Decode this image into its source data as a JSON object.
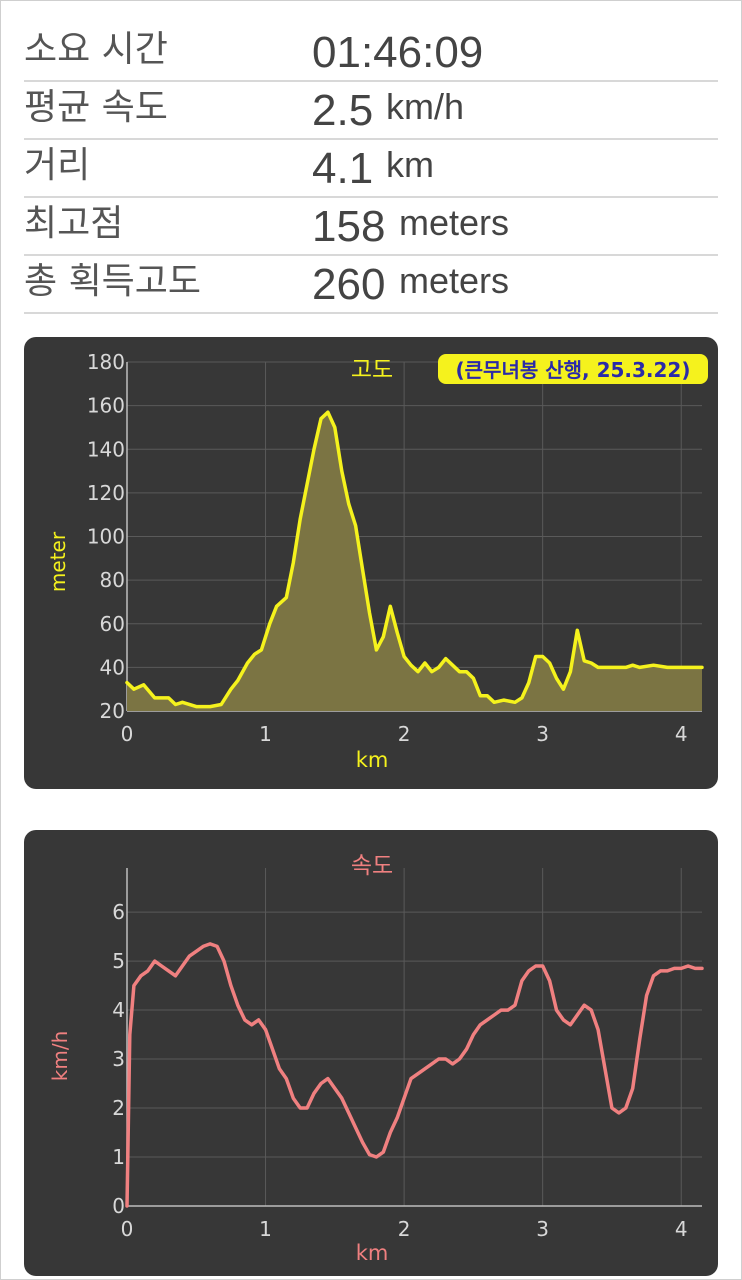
{
  "stats": [
    {
      "label": "소요 시간",
      "value": "01:46:09",
      "unit": ""
    },
    {
      "label": "평균 속도",
      "value": "2.5",
      "unit": "km/h"
    },
    {
      "label": "거리",
      "value": "4.1",
      "unit": "km"
    },
    {
      "label": "최고점",
      "value": "158",
      "unit": "meters"
    },
    {
      "label": "총 획득고도",
      "value": "260",
      "unit": "meters"
    }
  ],
  "colors": {
    "card_bg": "#373737",
    "grid": "#5a5a5a",
    "axis_text": "#d8d8d8",
    "elevation_line": "#f5f21d",
    "elevation_fill": "#7b7443",
    "speed_line": "#f08080",
    "annotation_bg": "#f5f21d",
    "annotation_text": "#2a2aa8"
  },
  "chart_data": [
    {
      "type": "area",
      "title": "고도",
      "annotation": "(큰무녀봉 산행, 25.3.22)",
      "xlabel": "km",
      "ylabel": "meter",
      "xlim": [
        0,
        4.15
      ],
      "ylim": [
        20,
        180
      ],
      "xticks": [
        "0",
        "1",
        "2",
        "3",
        "4"
      ],
      "yticks": [
        "20",
        "40",
        "60",
        "80",
        "100",
        "120",
        "140",
        "160",
        "180"
      ],
      "grid": true,
      "x": [
        0,
        0.05,
        0.12,
        0.2,
        0.3,
        0.35,
        0.4,
        0.5,
        0.6,
        0.68,
        0.75,
        0.8,
        0.87,
        0.92,
        0.97,
        1.03,
        1.08,
        1.15,
        1.2,
        1.25,
        1.3,
        1.35,
        1.4,
        1.45,
        1.5,
        1.55,
        1.6,
        1.65,
        1.7,
        1.75,
        1.8,
        1.85,
        1.9,
        1.95,
        2.0,
        2.05,
        2.1,
        2.15,
        2.2,
        2.25,
        2.3,
        2.35,
        2.4,
        2.45,
        2.5,
        2.55,
        2.6,
        2.65,
        2.72,
        2.8,
        2.85,
        2.9,
        2.95,
        3.0,
        3.05,
        3.1,
        3.15,
        3.2,
        3.25,
        3.3,
        3.35,
        3.4,
        3.45,
        3.5,
        3.55,
        3.6,
        3.65,
        3.7,
        3.8,
        3.9,
        4.0,
        4.1,
        4.15
      ],
      "y": [
        33,
        30,
        32,
        26,
        26,
        23,
        24,
        22,
        22,
        23,
        30,
        34,
        42,
        46,
        48,
        60,
        68,
        72,
        88,
        108,
        124,
        140,
        154,
        157,
        150,
        130,
        115,
        105,
        85,
        65,
        48,
        54,
        68,
        56,
        45,
        41,
        38,
        42,
        38,
        40,
        44,
        41,
        38,
        38,
        35,
        27,
        27,
        24,
        25,
        24,
        26,
        33,
        45,
        45,
        42,
        35,
        30,
        38,
        57,
        43,
        42,
        40,
        40,
        40,
        40,
        40,
        41,
        40,
        41,
        40,
        40,
        40,
        40
      ]
    },
    {
      "type": "line",
      "title": "속도",
      "xlabel": "km",
      "ylabel": "km/h",
      "xlim": [
        0,
        4.15
      ],
      "ylim": [
        0,
        6.9
      ],
      "xticks": [
        "0",
        "1",
        "2",
        "3",
        "4"
      ],
      "yticks": [
        "0",
        "1",
        "2",
        "3",
        "4",
        "5",
        "6"
      ],
      "grid": true,
      "x": [
        0,
        0.02,
        0.05,
        0.1,
        0.15,
        0.2,
        0.25,
        0.3,
        0.35,
        0.4,
        0.45,
        0.5,
        0.55,
        0.6,
        0.65,
        0.7,
        0.75,
        0.8,
        0.85,
        0.9,
        0.95,
        1.0,
        1.05,
        1.1,
        1.15,
        1.2,
        1.25,
        1.3,
        1.35,
        1.4,
        1.45,
        1.5,
        1.55,
        1.6,
        1.65,
        1.7,
        1.75,
        1.8,
        1.85,
        1.9,
        1.95,
        2.0,
        2.05,
        2.1,
        2.15,
        2.2,
        2.25,
        2.3,
        2.35,
        2.4,
        2.45,
        2.5,
        2.55,
        2.6,
        2.65,
        2.7,
        2.75,
        2.8,
        2.85,
        2.9,
        2.95,
        3.0,
        3.05,
        3.1,
        3.15,
        3.2,
        3.25,
        3.3,
        3.35,
        3.4,
        3.45,
        3.5,
        3.55,
        3.6,
        3.65,
        3.7,
        3.75,
        3.8,
        3.85,
        3.9,
        3.95,
        4.0,
        4.05,
        4.1,
        4.15
      ],
      "y": [
        0,
        3.5,
        4.5,
        4.7,
        4.8,
        5.0,
        4.9,
        4.8,
        4.7,
        4.9,
        5.1,
        5.2,
        5.3,
        5.35,
        5.3,
        5.0,
        4.5,
        4.1,
        3.8,
        3.7,
        3.8,
        3.6,
        3.2,
        2.8,
        2.6,
        2.2,
        2.0,
        2.0,
        2.3,
        2.5,
        2.6,
        2.4,
        2.2,
        1.9,
        1.6,
        1.3,
        1.05,
        1.0,
        1.1,
        1.5,
        1.8,
        2.2,
        2.6,
        2.7,
        2.8,
        2.9,
        3.0,
        3.0,
        2.9,
        3.0,
        3.2,
        3.5,
        3.7,
        3.8,
        3.9,
        4.0,
        4.0,
        4.1,
        4.6,
        4.8,
        4.9,
        4.9,
        4.6,
        4.0,
        3.8,
        3.7,
        3.9,
        4.1,
        4.0,
        3.6,
        2.8,
        2.0,
        1.9,
        2.0,
        2.4,
        3.4,
        4.3,
        4.7,
        4.8,
        4.8,
        4.85,
        4.85,
        4.9,
        4.85,
        4.85
      ]
    }
  ]
}
